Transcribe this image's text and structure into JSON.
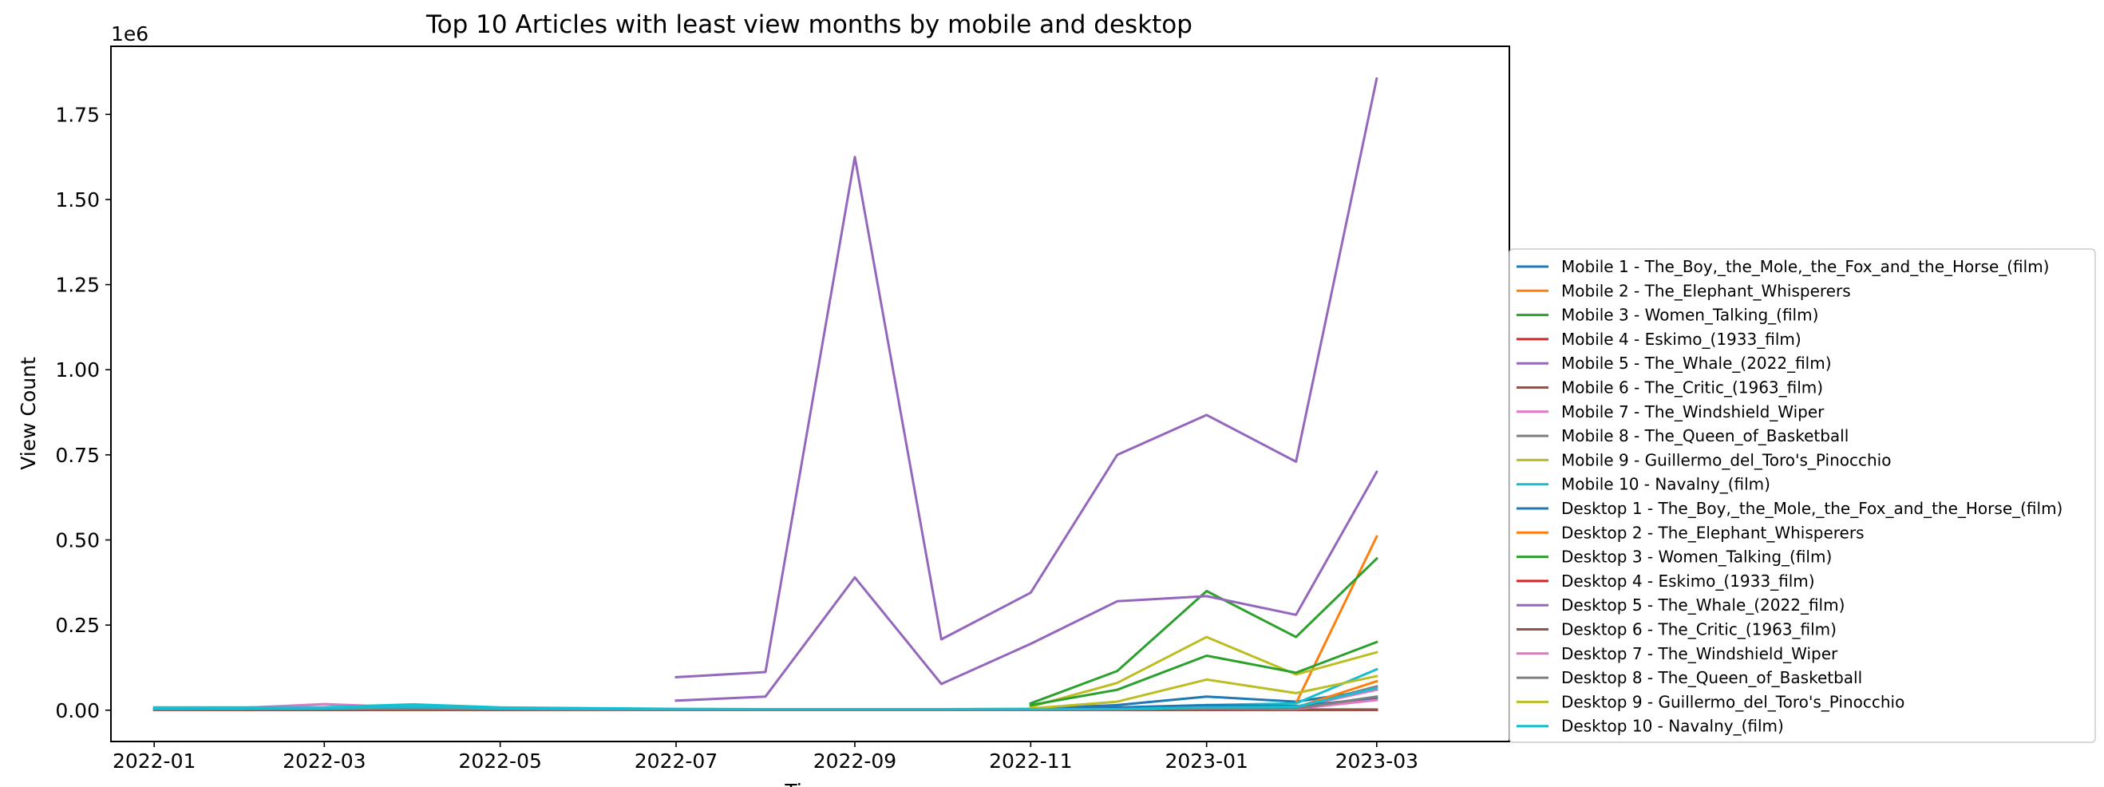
{
  "chart_data": {
    "type": "line",
    "title": "Top 10 Articles with least view months by mobile and desktop",
    "xlabel": "Time",
    "ylabel": "View Count",
    "y_multiplier_label": "1e6",
    "x_tick_labels": [
      "2022-01",
      "2022-03",
      "2022-05",
      "2022-07",
      "2022-09",
      "2022-11",
      "2023-01",
      "2023-03"
    ],
    "x": [
      "2022-01",
      "2022-02",
      "2022-03",
      "2022-04",
      "2022-05",
      "2022-06",
      "2022-07",
      "2022-08",
      "2022-09",
      "2022-10",
      "2022-11",
      "2022-12",
      "2023-01",
      "2023-02",
      "2023-03"
    ],
    "xlim": [
      "2021-12-17",
      "2023-04-16"
    ],
    "y_tick_values": [
      0,
      250000,
      500000,
      750000,
      1000000,
      1250000,
      1500000,
      1750000
    ],
    "y_tick_labels": [
      "0.00",
      "0.25",
      "0.50",
      "0.75",
      "1.00",
      "1.25",
      "1.50",
      "1.75"
    ],
    "ylim": [
      -92000,
      1950000
    ],
    "grid": false,
    "legend_position": "right",
    "series": [
      {
        "name": "Mobile 1 - The_Boy,_the_Mole,_the_Fox_and_the_Horse_(film)",
        "color": "#1f77b4",
        "values": [
          null,
          null,
          null,
          null,
          null,
          null,
          null,
          null,
          null,
          null,
          5000,
          15000,
          40000,
          25000,
          60000
        ]
      },
      {
        "name": "Mobile 2 - The_Elephant_Whisperers",
        "color": "#ff7f0e",
        "values": [
          null,
          null,
          null,
          null,
          null,
          null,
          null,
          null,
          null,
          null,
          null,
          null,
          null,
          20000,
          510000
        ]
      },
      {
        "name": "Mobile 3 - Women_Talking_(film)",
        "color": "#2ca02c",
        "values": [
          null,
          null,
          null,
          null,
          null,
          null,
          null,
          null,
          null,
          null,
          20000,
          115000,
          350000,
          215000,
          445000
        ]
      },
      {
        "name": "Mobile 4 - Eskimo_(1933_film)",
        "color": "#d62728",
        "values": [
          1500,
          1500,
          1500,
          1500,
          1500,
          1500,
          1500,
          1500,
          1500,
          1500,
          1500,
          1500,
          1500,
          1500,
          1500
        ]
      },
      {
        "name": "Mobile 5 - The_Whale_(2022_film)",
        "color": "#9467bd",
        "values": [
          null,
          null,
          null,
          null,
          null,
          null,
          97000,
          112000,
          1625000,
          208000,
          345000,
          750000,
          867000,
          730000,
          1855000
        ]
      },
      {
        "name": "Mobile 6 - The_Critic_(1963_film)",
        "color": "#8c564b",
        "values": [
          2000,
          2000,
          2000,
          2000,
          2000,
          2000,
          2000,
          2000,
          2000,
          2000,
          2000,
          2000,
          2000,
          2000,
          2000
        ]
      },
      {
        "name": "Mobile 7 - The_Windshield_Wiper",
        "color": "#e377c2",
        "values": [
          5000,
          7000,
          18000,
          8000,
          5000,
          4000,
          3000,
          3000,
          3000,
          3000,
          3000,
          5000,
          10000,
          8000,
          60000
        ]
      },
      {
        "name": "Mobile 8 - The_Queen_of_Basketball",
        "color": "#7f7f7f",
        "values": [
          4000,
          5000,
          6000,
          6000,
          5000,
          4000,
          3000,
          3000,
          3000,
          3000,
          3000,
          4000,
          10000,
          8000,
          70000
        ]
      },
      {
        "name": "Mobile 9 - Guillermo_del_Toro's_Pinocchio",
        "color": "#bcbd22",
        "values": [
          null,
          null,
          null,
          null,
          null,
          null,
          null,
          null,
          null,
          null,
          10000,
          80000,
          215000,
          105000,
          170000
        ]
      },
      {
        "name": "Mobile 10 - Navalny_(film)",
        "color": "#17becf",
        "values": [
          8000,
          8000,
          9000,
          17000,
          8000,
          6000,
          4000,
          3000,
          3000,
          3000,
          4000,
          6000,
          15000,
          20000,
          120000
        ]
      },
      {
        "name": "Desktop 1 - The_Boy,_the_Mole,_the_Fox_and_the_Horse_(film)",
        "color": "#1f77b4",
        "values": [
          null,
          null,
          null,
          null,
          null,
          null,
          null,
          null,
          null,
          null,
          3000,
          8000,
          15000,
          12000,
          35000
        ]
      },
      {
        "name": "Desktop 2 - The_Elephant_Whisperers",
        "color": "#ff7f0e",
        "values": [
          null,
          null,
          null,
          null,
          null,
          null,
          null,
          null,
          null,
          null,
          null,
          null,
          null,
          8000,
          85000
        ]
      },
      {
        "name": "Desktop 3 - Women_Talking_(film)",
        "color": "#2ca02c",
        "values": [
          null,
          null,
          null,
          null,
          null,
          null,
          null,
          null,
          null,
          null,
          15000,
          60000,
          160000,
          110000,
          200000
        ]
      },
      {
        "name": "Desktop 4 - Eskimo_(1933_film)",
        "color": "#d62728",
        "values": [
          500,
          500,
          500,
          500,
          500,
          500,
          500,
          500,
          500,
          500,
          500,
          500,
          500,
          500,
          500
        ]
      },
      {
        "name": "Desktop 5 - The_Whale_(2022_film)",
        "color": "#9467bd",
        "values": [
          null,
          null,
          null,
          null,
          null,
          null,
          28000,
          40000,
          390000,
          77000,
          195000,
          320000,
          335000,
          280000,
          700000
        ]
      },
      {
        "name": "Desktop 6 - The_Critic_(1963_film)",
        "color": "#8c564b",
        "values": [
          1000,
          1000,
          1000,
          1000,
          1000,
          1000,
          1000,
          1000,
          1000,
          1000,
          1000,
          1000,
          1000,
          1000,
          1000
        ]
      },
      {
        "name": "Desktop 7 - The_Windshield_Wiper",
        "color": "#e377c2",
        "values": [
          3000,
          4000,
          8000,
          5000,
          3000,
          2000,
          2000,
          2000,
          2000,
          2000,
          2000,
          3000,
          5000,
          4000,
          30000
        ]
      },
      {
        "name": "Desktop 8 - The_Queen_of_Basketball",
        "color": "#7f7f7f",
        "values": [
          2000,
          3000,
          4000,
          4000,
          3000,
          2000,
          2000,
          2000,
          2000,
          2000,
          2000,
          2000,
          6000,
          5000,
          40000
        ]
      },
      {
        "name": "Desktop 9 - Guillermo_del_Toro's_Pinocchio",
        "color": "#bcbd22",
        "values": [
          null,
          null,
          null,
          null,
          null,
          null,
          null,
          null,
          null,
          null,
          5000,
          25000,
          90000,
          50000,
          100000
        ]
      },
      {
        "name": "Desktop 10 - Navalny_(film)",
        "color": "#17becf",
        "values": [
          5000,
          5000,
          5000,
          10000,
          5000,
          3000,
          2000,
          2000,
          2000,
          2000,
          2000,
          3000,
          8000,
          10000,
          65000
        ]
      }
    ]
  }
}
